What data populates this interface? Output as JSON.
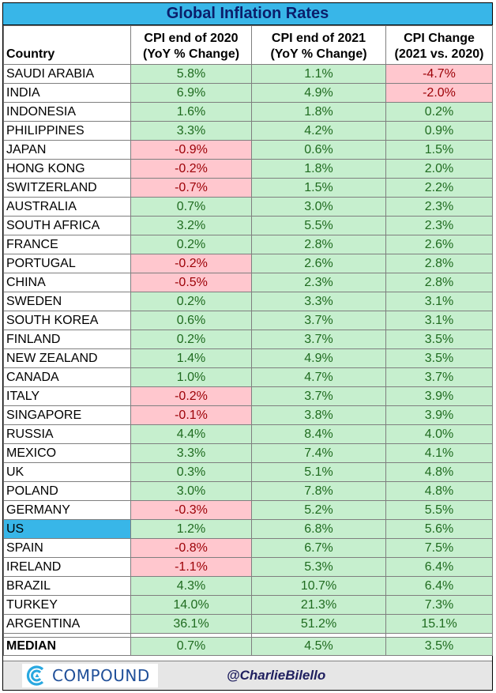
{
  "title": "Global Inflation Rates",
  "headers": {
    "country": "Country",
    "col1_line1": "CPI end of 2020",
    "col1_line2": "(YoY % Change)",
    "col2_line1": "CPI end of 2021",
    "col2_line2": "(YoY % Change)",
    "col3_line1": "CPI Change",
    "col3_line2": "(2021 vs. 2020)"
  },
  "colors": {
    "title_bg": "#38b6e8",
    "positive_bg": "#c6efce",
    "negative_bg": "#ffc7ce",
    "highlight_row": "#38b6e8"
  },
  "rows": [
    {
      "country": "SAUDI ARABIA",
      "cpi2020": "5.8%",
      "cpi2021": "1.1%",
      "change": "-4.7%"
    },
    {
      "country": "INDIA",
      "cpi2020": "6.9%",
      "cpi2021": "4.9%",
      "change": "-2.0%"
    },
    {
      "country": "INDONESIA",
      "cpi2020": "1.6%",
      "cpi2021": "1.8%",
      "change": "0.2%"
    },
    {
      "country": "PHILIPPINES",
      "cpi2020": "3.3%",
      "cpi2021": "4.2%",
      "change": "0.9%"
    },
    {
      "country": "JAPAN",
      "cpi2020": "-0.9%",
      "cpi2021": "0.6%",
      "change": "1.5%"
    },
    {
      "country": "HONG KONG",
      "cpi2020": "-0.2%",
      "cpi2021": "1.8%",
      "change": "2.0%"
    },
    {
      "country": "SWITZERLAND",
      "cpi2020": "-0.7%",
      "cpi2021": "1.5%",
      "change": "2.2%"
    },
    {
      "country": "AUSTRALIA",
      "cpi2020": "0.7%",
      "cpi2021": "3.0%",
      "change": "2.3%"
    },
    {
      "country": "SOUTH AFRICA",
      "cpi2020": "3.2%",
      "cpi2021": "5.5%",
      "change": "2.3%"
    },
    {
      "country": "FRANCE",
      "cpi2020": "0.2%",
      "cpi2021": "2.8%",
      "change": "2.6%"
    },
    {
      "country": "PORTUGAL",
      "cpi2020": "-0.2%",
      "cpi2021": "2.6%",
      "change": "2.8%"
    },
    {
      "country": "CHINA",
      "cpi2020": "-0.5%",
      "cpi2021": "2.3%",
      "change": "2.8%"
    },
    {
      "country": "SWEDEN",
      "cpi2020": "0.2%",
      "cpi2021": "3.3%",
      "change": "3.1%"
    },
    {
      "country": "SOUTH KOREA",
      "cpi2020": "0.6%",
      "cpi2021": "3.7%",
      "change": "3.1%"
    },
    {
      "country": "FINLAND",
      "cpi2020": "0.2%",
      "cpi2021": "3.7%",
      "change": "3.5%"
    },
    {
      "country": "NEW ZEALAND",
      "cpi2020": "1.4%",
      "cpi2021": "4.9%",
      "change": "3.5%"
    },
    {
      "country": "CANADA",
      "cpi2020": "1.0%",
      "cpi2021": "4.7%",
      "change": "3.7%"
    },
    {
      "country": "ITALY",
      "cpi2020": "-0.2%",
      "cpi2021": "3.7%",
      "change": "3.9%"
    },
    {
      "country": "SINGAPORE",
      "cpi2020": "-0.1%",
      "cpi2021": "3.8%",
      "change": "3.9%"
    },
    {
      "country": "RUSSIA",
      "cpi2020": "4.4%",
      "cpi2021": "8.4%",
      "change": "4.0%"
    },
    {
      "country": "MEXICO",
      "cpi2020": "3.3%",
      "cpi2021": "7.4%",
      "change": "4.1%"
    },
    {
      "country": "UK",
      "cpi2020": "0.3%",
      "cpi2021": "5.1%",
      "change": "4.8%"
    },
    {
      "country": "POLAND",
      "cpi2020": "3.0%",
      "cpi2021": "7.8%",
      "change": "4.8%"
    },
    {
      "country": "GERMANY",
      "cpi2020": "-0.3%",
      "cpi2021": "5.2%",
      "change": "5.5%"
    },
    {
      "country": "US",
      "cpi2020": "1.2%",
      "cpi2021": "6.8%",
      "change": "5.6%",
      "highlight": true
    },
    {
      "country": "SPAIN",
      "cpi2020": "-0.8%",
      "cpi2021": "6.7%",
      "change": "7.5%"
    },
    {
      "country": "IRELAND",
      "cpi2020": "-1.1%",
      "cpi2021": "5.3%",
      "change": "6.4%"
    },
    {
      "country": "BRAZIL",
      "cpi2020": "4.3%",
      "cpi2021": "10.7%",
      "change": "6.4%"
    },
    {
      "country": "TURKEY",
      "cpi2020": "14.0%",
      "cpi2021": "21.3%",
      "change": "7.3%"
    },
    {
      "country": "ARGENTINA",
      "cpi2020": "36.1%",
      "cpi2021": "51.2%",
      "change": "15.1%"
    }
  ],
  "median": {
    "label": "MEDIAN",
    "cpi2020": "0.7%",
    "cpi2021": "4.5%",
    "change": "3.5%"
  },
  "footer": {
    "logo_text": "COMPOUND",
    "logo_icon": "compound-logo-icon",
    "handle": "@CharlieBilello"
  }
}
